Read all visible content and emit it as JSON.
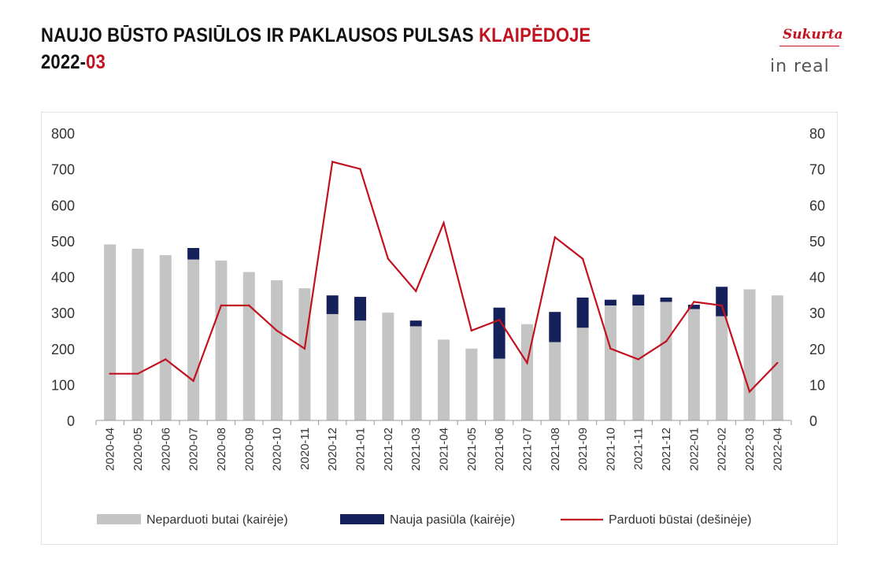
{
  "title": {
    "line1_main": "NAUJO BŪSTO PASIŪLOS IR PAKLAUSOS PULSAS ",
    "line1_accent": "KLAIPĖDOJE",
    "line2_main": "2022-",
    "line2_accent": "03"
  },
  "logo": {
    "script": "Sukurta",
    "word": "in real"
  },
  "colors": {
    "unsold": "#c4c4c4",
    "new_supply": "#14215a",
    "sold": "#c1121f",
    "accent": "#c1121f"
  },
  "chart_data": {
    "type": "bar",
    "stacked": true,
    "categories": [
      "2020-04",
      "2020-05",
      "2020-06",
      "2020-07",
      "2020-08",
      "2020-09",
      "2020-10",
      "2020-11",
      "2020-12",
      "2021-01",
      "2021-02",
      "2021-03",
      "2021-04",
      "2021-05",
      "2021-06",
      "2021-07",
      "2021-08",
      "2021-09",
      "2021-10",
      "2021-11",
      "2021-12",
      "2022-01",
      "2022-02",
      "2022-03",
      "2022-04"
    ],
    "series": [
      {
        "name": "Neparduoti butai (kairėje)",
        "type": "bar",
        "axis": "left",
        "values": [
          490,
          478,
          460,
          448,
          445,
          413,
          390,
          368,
          296,
          278,
          300,
          262,
          225,
          200,
          172,
          268,
          218,
          258,
          320,
          320,
          330,
          310,
          290,
          365,
          348
        ]
      },
      {
        "name": "Nauja pasiūla (kairėje)",
        "type": "bar",
        "axis": "left",
        "values": [
          0,
          0,
          0,
          32,
          0,
          0,
          0,
          0,
          52,
          66,
          0,
          16,
          0,
          0,
          142,
          0,
          84,
          84,
          16,
          30,
          12,
          12,
          82,
          0,
          0
        ]
      },
      {
        "name": "Parduoti būstai (dešinėje)",
        "type": "line",
        "axis": "right",
        "values": [
          13,
          13,
          17,
          11,
          32,
          32,
          25,
          20,
          72,
          70,
          45,
          36,
          55,
          25,
          28,
          16,
          51,
          45,
          20,
          17,
          22,
          33,
          32,
          8,
          16
        ]
      }
    ],
    "y_left": {
      "min": 0,
      "max": 800,
      "ticks": [
        "0",
        "100",
        "200",
        "300",
        "400",
        "500",
        "600",
        "700",
        "800"
      ]
    },
    "y_right": {
      "min": 0,
      "max": 80,
      "ticks": [
        "0",
        "10",
        "20",
        "30",
        "40",
        "50",
        "60",
        "70",
        "80"
      ]
    },
    "grid": false,
    "legend_position": "bottom"
  }
}
